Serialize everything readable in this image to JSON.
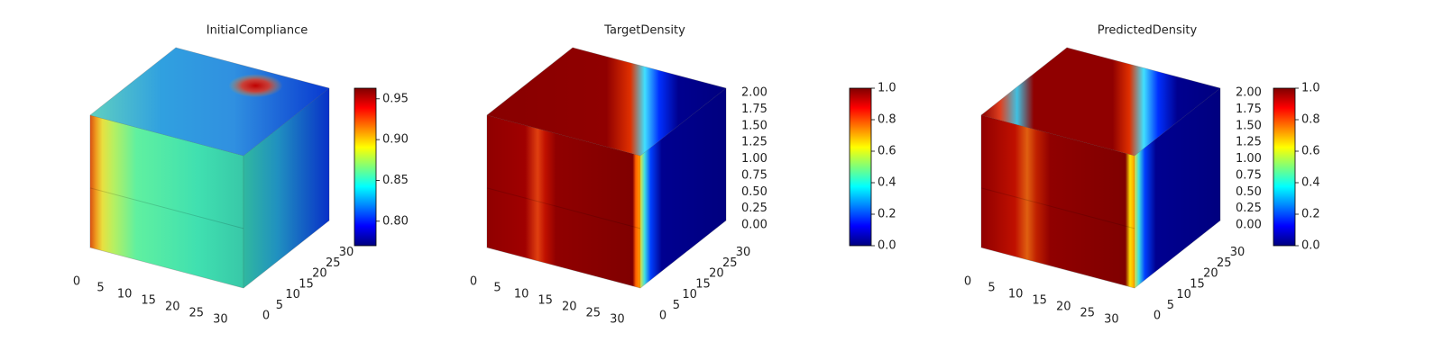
{
  "chart_data": [
    {
      "type": "voxel",
      "title": "InitialCompliance",
      "xlim": [
        0,
        32
      ],
      "ylim": [
        0,
        32
      ],
      "xticks": [
        0,
        5,
        10,
        15,
        20,
        25,
        30
      ],
      "yticks": [
        0,
        5,
        10,
        15,
        20,
        25,
        30
      ],
      "cmap": "jet",
      "clim": [
        0.77,
        0.963
      ],
      "cticks": [
        {
          "value": 0.8,
          "label": "0.80"
        },
        0.85,
        {
          "value": 0.9,
          "label": "0.90"
        },
        0.95
      ]
    },
    {
      "type": "voxel",
      "title": "TargetDensity",
      "xlim": [
        0,
        32
      ],
      "ylim": [
        0,
        32
      ],
      "zlim": [
        0,
        2
      ],
      "xticks": [
        0,
        5,
        10,
        15,
        20,
        25,
        30
      ],
      "yticks": [
        0,
        5,
        10,
        15,
        20,
        25,
        30
      ],
      "zticks": [
        {
          "value": 0,
          "label": "0.00"
        },
        0.25,
        {
          "value": 0.5,
          "label": "0.50"
        },
        0.75,
        {
          "value": 1,
          "label": "1.00"
        },
        1.25,
        {
          "value": 1.5,
          "label": "1.50"
        },
        1.75,
        {
          "value": 2,
          "label": "2.00"
        }
      ],
      "cmap": "jet",
      "clim": [
        0,
        1
      ],
      "cticks": [
        {
          "value": 0,
          "label": "0.0"
        },
        0.2,
        0.4,
        0.6,
        0.8,
        {
          "value": 1,
          "label": "1.0"
        }
      ]
    },
    {
      "type": "voxel",
      "title": "PredictedDensity",
      "xlim": [
        0,
        32
      ],
      "ylim": [
        0,
        32
      ],
      "zlim": [
        0,
        2
      ],
      "xticks": [
        0,
        5,
        10,
        15,
        20,
        25,
        30
      ],
      "yticks": [
        0,
        5,
        10,
        15,
        20,
        25,
        30
      ],
      "zticks": [
        {
          "value": 0,
          "label": "0.00"
        },
        0.25,
        {
          "value": 0.5,
          "label": "0.50"
        },
        0.75,
        {
          "value": 1,
          "label": "1.00"
        },
        1.25,
        {
          "value": 1.5,
          "label": "1.50"
        },
        1.75,
        {
          "value": 2,
          "label": "2.00"
        }
      ],
      "cmap": "jet",
      "clim": [
        0,
        1
      ],
      "cticks": [
        {
          "value": 0,
          "label": "0.0"
        },
        0.2,
        0.4,
        0.6,
        0.8,
        {
          "value": 1,
          "label": "1.0"
        }
      ]
    }
  ]
}
